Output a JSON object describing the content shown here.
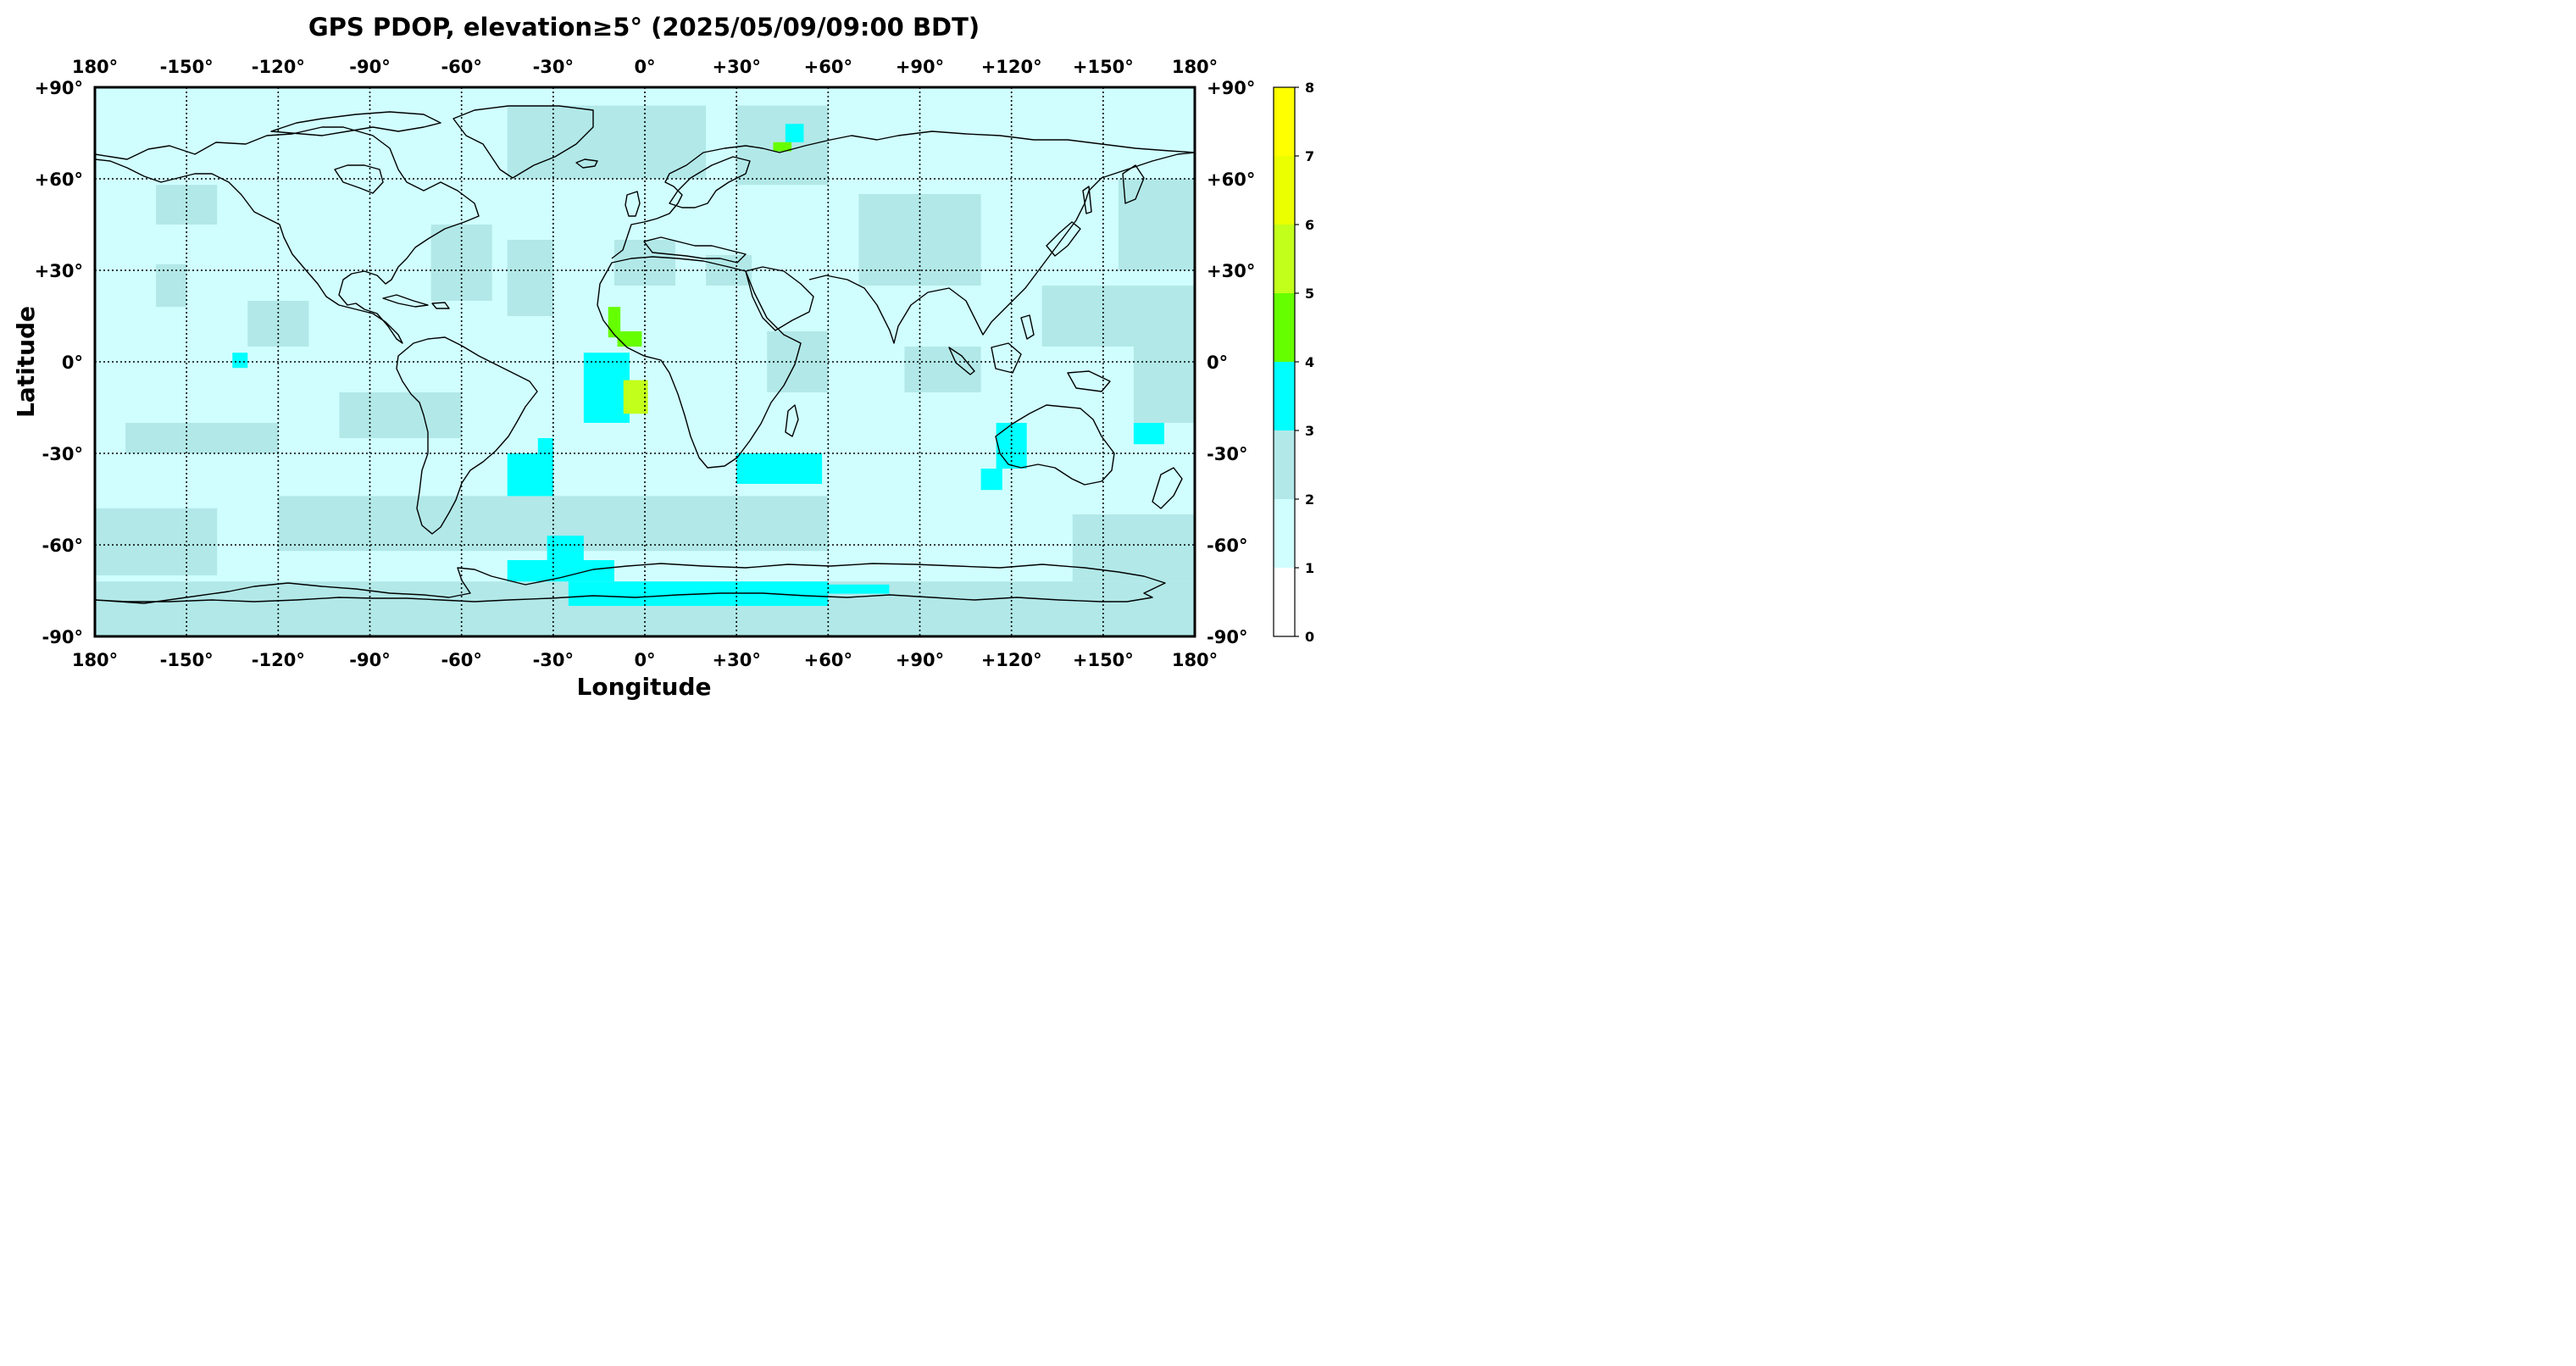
{
  "title": "GPS PDOP, elevation≥5° (2025/05/09/09:00 BDT)",
  "xlabel": "Longitude",
  "ylabel": "Latitude",
  "lon_ticks": [
    "180°",
    "-150°",
    "-120°",
    "-90°",
    "-60°",
    "-30°",
    "0°",
    "+30°",
    "+60°",
    "+90°",
    "+120°",
    "+150°",
    "180°"
  ],
  "lat_ticks": [
    "+90°",
    "+60°",
    "+30°",
    "0°",
    "-30°",
    "-60°",
    "-90°"
  ],
  "colorbar": {
    "ticks": [
      "0",
      "1",
      "2",
      "3",
      "4",
      "5",
      "6",
      "7",
      "8"
    ],
    "colors": [
      "#ffffff",
      "#d0feff",
      "#b2e8e8",
      "#00ffff",
      "#66ff00",
      "#c2ff1a",
      "#ebff00",
      "#ffff00"
    ]
  },
  "chart_data": {
    "type": "heatmap",
    "xlim": [
      -180,
      180
    ],
    "ylim": [
      -90,
      90
    ],
    "grid": true,
    "zlim": [
      0,
      8
    ],
    "background_pdop": 1.5,
    "regions": [
      {
        "lon_min": -38,
        "lon_max": -28,
        "lat_min": 62,
        "lat_max": 82,
        "pdop": 2.5
      },
      {
        "lon_min": -45,
        "lon_max": 20,
        "lat_min": 60,
        "lat_max": 84,
        "pdop": 2.5
      },
      {
        "lon_min": 30,
        "lon_max": 60,
        "lat_min": 58,
        "lat_max": 84,
        "pdop": 2.5
      },
      {
        "lon_min": 42,
        "lon_max": 48,
        "lat_min": 69,
        "lat_max": 72,
        "pdop": 4.5
      },
      {
        "lon_min": 46,
        "lon_max": 52,
        "lat_min": 72,
        "lat_max": 78,
        "pdop": 3.5
      },
      {
        "lon_min": -160,
        "lon_max": -140,
        "lat_min": 45,
        "lat_max": 58,
        "pdop": 2.5
      },
      {
        "lon_min": -160,
        "lon_max": -150,
        "lat_min": 18,
        "lat_max": 32,
        "pdop": 2.5
      },
      {
        "lon_min": -130,
        "lon_max": -110,
        "lat_min": 5,
        "lat_max": 20,
        "pdop": 2.5
      },
      {
        "lon_min": -135,
        "lon_max": -130,
        "lat_min": -2,
        "lat_max": 3,
        "pdop": 3.5
      },
      {
        "lon_min": -170,
        "lon_max": -120,
        "lat_min": -30,
        "lat_max": -20,
        "pdop": 2.5
      },
      {
        "lon_min": -100,
        "lon_max": -60,
        "lat_min": -25,
        "lat_max": -10,
        "pdop": 2.5
      },
      {
        "lon_min": -70,
        "lon_max": -50,
        "lat_min": 20,
        "lat_max": 45,
        "pdop": 2.5
      },
      {
        "lon_min": -45,
        "lon_max": -30,
        "lat_min": 15,
        "lat_max": 40,
        "pdop": 2.5
      },
      {
        "lon_min": -20,
        "lon_max": -5,
        "lat_min": -20,
        "lat_max": 3,
        "pdop": 3.5
      },
      {
        "lon_min": -12,
        "lon_max": -8,
        "lat_min": 8,
        "lat_max": 18,
        "pdop": 4.5
      },
      {
        "lon_min": -9,
        "lon_max": -1,
        "lat_min": 5,
        "lat_max": 10,
        "pdop": 4.5
      },
      {
        "lon_min": -7,
        "lon_max": 1,
        "lat_min": -17,
        "lat_max": -6,
        "pdop": 5.5
      },
      {
        "lon_min": -10,
        "lon_max": 10,
        "lat_min": 25,
        "lat_max": 40,
        "pdop": 2.5
      },
      {
        "lon_min": 20,
        "lon_max": 35,
        "lat_min": 25,
        "lat_max": 35,
        "pdop": 2.5
      },
      {
        "lon_min": 40,
        "lon_max": 60,
        "lat_min": -10,
        "lat_max": 10,
        "pdop": 2.5
      },
      {
        "lon_min": 85,
        "lon_max": 110,
        "lat_min": -10,
        "lat_max": 5,
        "pdop": 2.5
      },
      {
        "lon_min": 70,
        "lon_max": 110,
        "lat_min": 25,
        "lat_max": 55,
        "pdop": 2.5
      },
      {
        "lon_min": 155,
        "lon_max": 180,
        "lat_min": 30,
        "lat_max": 60,
        "pdop": 2.5
      },
      {
        "lon_min": 130,
        "lon_max": 180,
        "lat_min": 5,
        "lat_max": 25,
        "pdop": 2.5
      },
      {
        "lon_min": 160,
        "lon_max": 180,
        "lat_min": -20,
        "lat_max": 5,
        "pdop": 2.5
      },
      {
        "lon_min": -45,
        "lon_max": -30,
        "lat_min": -47,
        "lat_max": -30,
        "pdop": 3.5
      },
      {
        "lon_min": -35,
        "lon_max": -30,
        "lat_min": -30,
        "lat_max": -25,
        "pdop": 3.5
      },
      {
        "lon_min": 30,
        "lon_max": 58,
        "lat_min": -40,
        "lat_max": -30,
        "pdop": 3.5
      },
      {
        "lon_min": 115,
        "lon_max": 125,
        "lat_min": -35,
        "lat_max": -20,
        "pdop": 3.5
      },
      {
        "lon_min": 110,
        "lon_max": 117,
        "lat_min": -42,
        "lat_max": -35,
        "pdop": 3.5
      },
      {
        "lon_min": 160,
        "lon_max": 170,
        "lat_min": -27,
        "lat_max": -20,
        "pdop": 3.5
      },
      {
        "lon_min": -180,
        "lon_max": 180,
        "lat_min": -90,
        "lat_max": -72,
        "pdop": 2.5
      },
      {
        "lon_min": -120,
        "lon_max": 60,
        "lat_min": -62,
        "lat_max": -44,
        "pdop": 2.5
      },
      {
        "lon_min": -180,
        "lon_max": -140,
        "lat_min": -70,
        "lat_max": -48,
        "pdop": 2.5
      },
      {
        "lon_min": 140,
        "lon_max": 180,
        "lat_min": -72,
        "lat_max": -50,
        "pdop": 2.5
      },
      {
        "lon_min": -45,
        "lon_max": -10,
        "lat_min": -72,
        "lat_max": -65,
        "pdop": 3.5
      },
      {
        "lon_min": -32,
        "lon_max": -20,
        "lat_min": -65,
        "lat_max": -57,
        "pdop": 3.5
      },
      {
        "lon_min": -25,
        "lon_max": 60,
        "lat_min": -80,
        "lat_max": -72,
        "pdop": 3.5
      },
      {
        "lon_min": 60,
        "lon_max": 80,
        "lat_min": -76,
        "lat_max": -73,
        "pdop": 3.5
      }
    ]
  }
}
